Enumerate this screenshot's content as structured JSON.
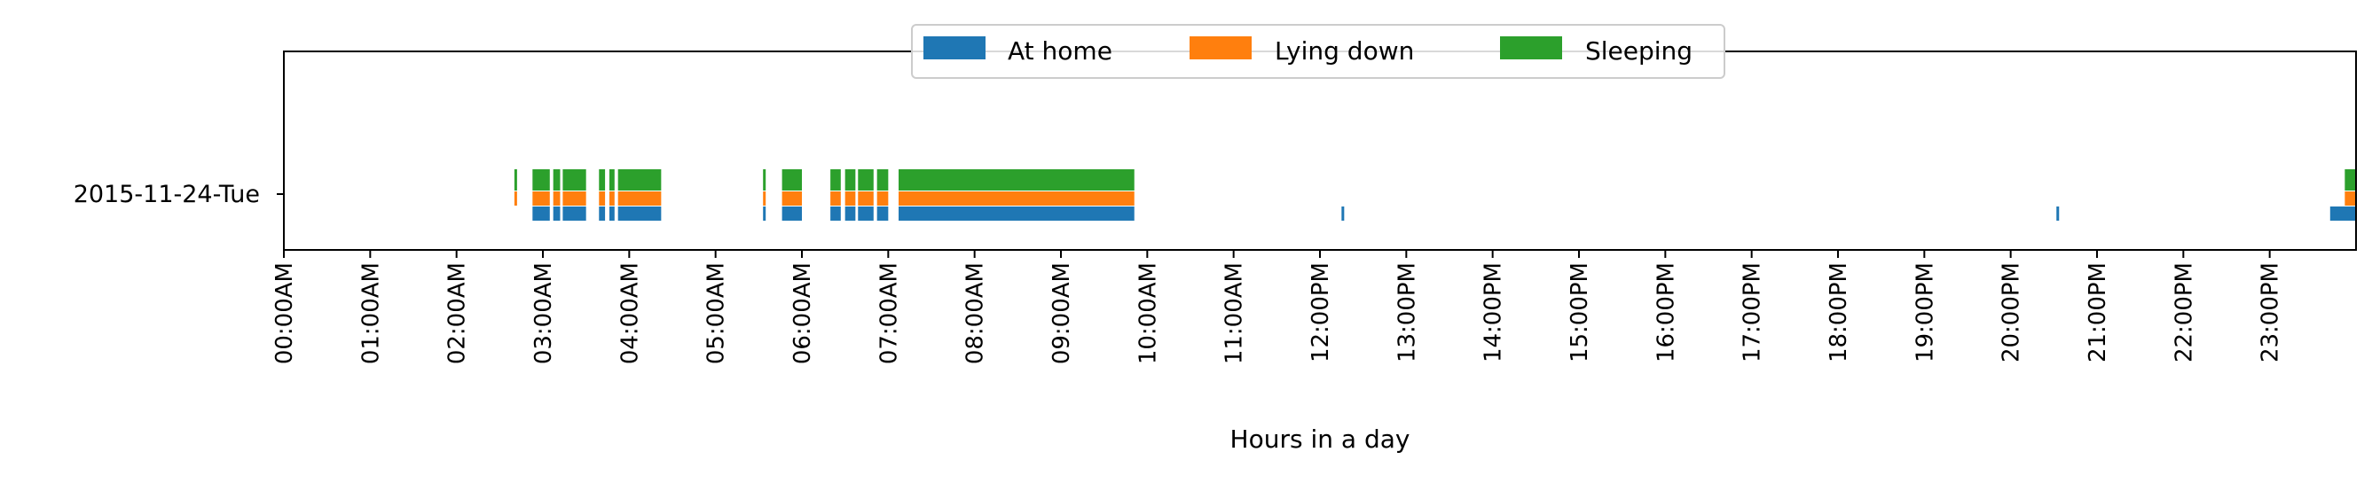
{
  "chart_data": {
    "type": "bar",
    "title": "",
    "xlabel": "Hours in a day",
    "ylabel": "",
    "x_unit": "hours",
    "xlim": [
      0,
      24
    ],
    "grid": false,
    "legend_position": "top-center",
    "y_categories": [
      "2015-11-24-Tue"
    ],
    "x_ticks": [
      {
        "hour": 0,
        "label": "00:00AM"
      },
      {
        "hour": 1,
        "label": "01:00AM"
      },
      {
        "hour": 2,
        "label": "02:00AM"
      },
      {
        "hour": 3,
        "label": "03:00AM"
      },
      {
        "hour": 4,
        "label": "04:00AM"
      },
      {
        "hour": 5,
        "label": "05:00AM"
      },
      {
        "hour": 6,
        "label": "06:00AM"
      },
      {
        "hour": 7,
        "label": "07:00AM"
      },
      {
        "hour": 8,
        "label": "08:00AM"
      },
      {
        "hour": 9,
        "label": "09:00AM"
      },
      {
        "hour": 10,
        "label": "10:00AM"
      },
      {
        "hour": 11,
        "label": "11:00AM"
      },
      {
        "hour": 12,
        "label": "12:00PM"
      },
      {
        "hour": 13,
        "label": "13:00PM"
      },
      {
        "hour": 14,
        "label": "14:00PM"
      },
      {
        "hour": 15,
        "label": "15:00PM"
      },
      {
        "hour": 16,
        "label": "16:00PM"
      },
      {
        "hour": 17,
        "label": "17:00PM"
      },
      {
        "hour": 18,
        "label": "18:00PM"
      },
      {
        "hour": 19,
        "label": "19:00PM"
      },
      {
        "hour": 20,
        "label": "20:00PM"
      },
      {
        "hour": 21,
        "label": "21:00PM"
      },
      {
        "hour": 22,
        "label": "22:00PM"
      },
      {
        "hour": 23,
        "label": "23:00PM"
      }
    ],
    "series": [
      {
        "name": "At home",
        "color": "#1f77b4",
        "intervals": [
          [
            2.88,
            3.08
          ],
          [
            3.12,
            3.2
          ],
          [
            3.23,
            3.5
          ],
          [
            3.65,
            3.72
          ],
          [
            3.77,
            3.83
          ],
          [
            3.87,
            4.37
          ],
          [
            5.55,
            5.58
          ],
          [
            5.77,
            6.0
          ],
          [
            6.33,
            6.45
          ],
          [
            6.5,
            6.62
          ],
          [
            6.65,
            6.83
          ],
          [
            6.87,
            7.0
          ],
          [
            7.12,
            9.85
          ],
          [
            12.25,
            12.28
          ],
          [
            20.53,
            20.56
          ],
          [
            23.7,
            24.0
          ]
        ]
      },
      {
        "name": "Lying down",
        "color": "#ff7f0e",
        "intervals": [
          [
            2.67,
            2.7
          ],
          [
            2.88,
            3.08
          ],
          [
            3.12,
            3.2
          ],
          [
            3.23,
            3.5
          ],
          [
            3.65,
            3.72
          ],
          [
            3.77,
            3.83
          ],
          [
            3.87,
            4.37
          ],
          [
            5.55,
            5.58
          ],
          [
            5.77,
            6.0
          ],
          [
            6.33,
            6.45
          ],
          [
            6.5,
            6.62
          ],
          [
            6.65,
            6.83
          ],
          [
            6.87,
            7.0
          ],
          [
            7.12,
            9.85
          ],
          [
            23.87,
            24.0
          ]
        ]
      },
      {
        "name": "Sleeping",
        "color": "#2ca02c",
        "intervals": [
          [
            2.67,
            2.7
          ],
          [
            2.88,
            3.08
          ],
          [
            3.12,
            3.2
          ],
          [
            3.23,
            3.5
          ],
          [
            3.65,
            3.72
          ],
          [
            3.77,
            3.83
          ],
          [
            3.87,
            4.37
          ],
          [
            5.55,
            5.58
          ],
          [
            5.77,
            6.0
          ],
          [
            6.33,
            6.45
          ],
          [
            6.5,
            6.62
          ],
          [
            6.65,
            6.83
          ],
          [
            6.87,
            7.0
          ],
          [
            7.12,
            9.85
          ],
          [
            23.87,
            24.0
          ]
        ]
      }
    ]
  }
}
